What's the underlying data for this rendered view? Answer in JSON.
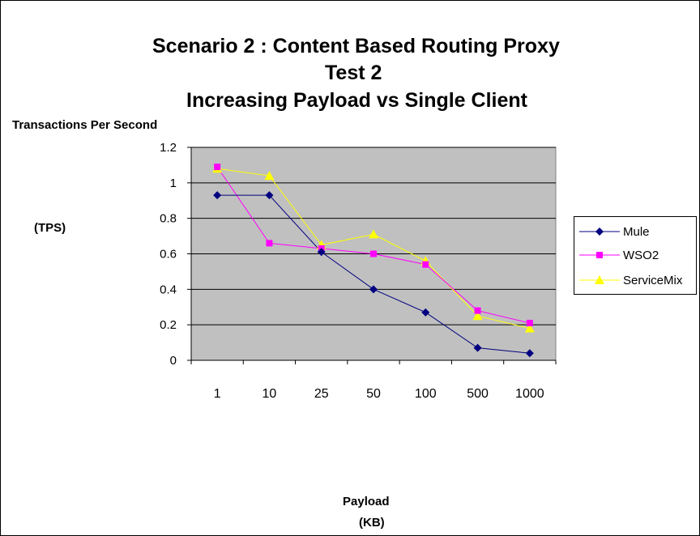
{
  "chart_data": {
    "type": "line",
    "title": [
      "Scenario 2 : Content Based Routing Proxy",
      "Test 2",
      "Increasing Payload vs Single Client"
    ],
    "ylabel": [
      "Transactions Per Second",
      "(TPS)"
    ],
    "xlabel": [
      "Payload",
      "(KB)"
    ],
    "categories": [
      "1",
      "10",
      "25",
      "50",
      "100",
      "500",
      "1000"
    ],
    "y_ticks": [
      "0",
      "0.2",
      "0.4",
      "0.6",
      "0.8",
      "1",
      "1.2"
    ],
    "ylim": [
      0,
      1.2
    ],
    "grid": true,
    "legend_position": "right",
    "plot_background": "#c0c0c0",
    "series": [
      {
        "name": "Mule",
        "color": "#000080",
        "marker": "diamond",
        "values": [
          0.93,
          0.93,
          0.61,
          0.4,
          0.27,
          0.07,
          0.04
        ]
      },
      {
        "name": "WSO2",
        "color": "#ff00ff",
        "marker": "square",
        "values": [
          1.09,
          0.66,
          0.63,
          0.6,
          0.54,
          0.28,
          0.21
        ]
      },
      {
        "name": "ServiceMix",
        "color": "#ffff00",
        "marker": "triangle",
        "values": [
          1.08,
          1.04,
          0.65,
          0.71,
          0.56,
          0.25,
          0.18
        ]
      }
    ]
  }
}
